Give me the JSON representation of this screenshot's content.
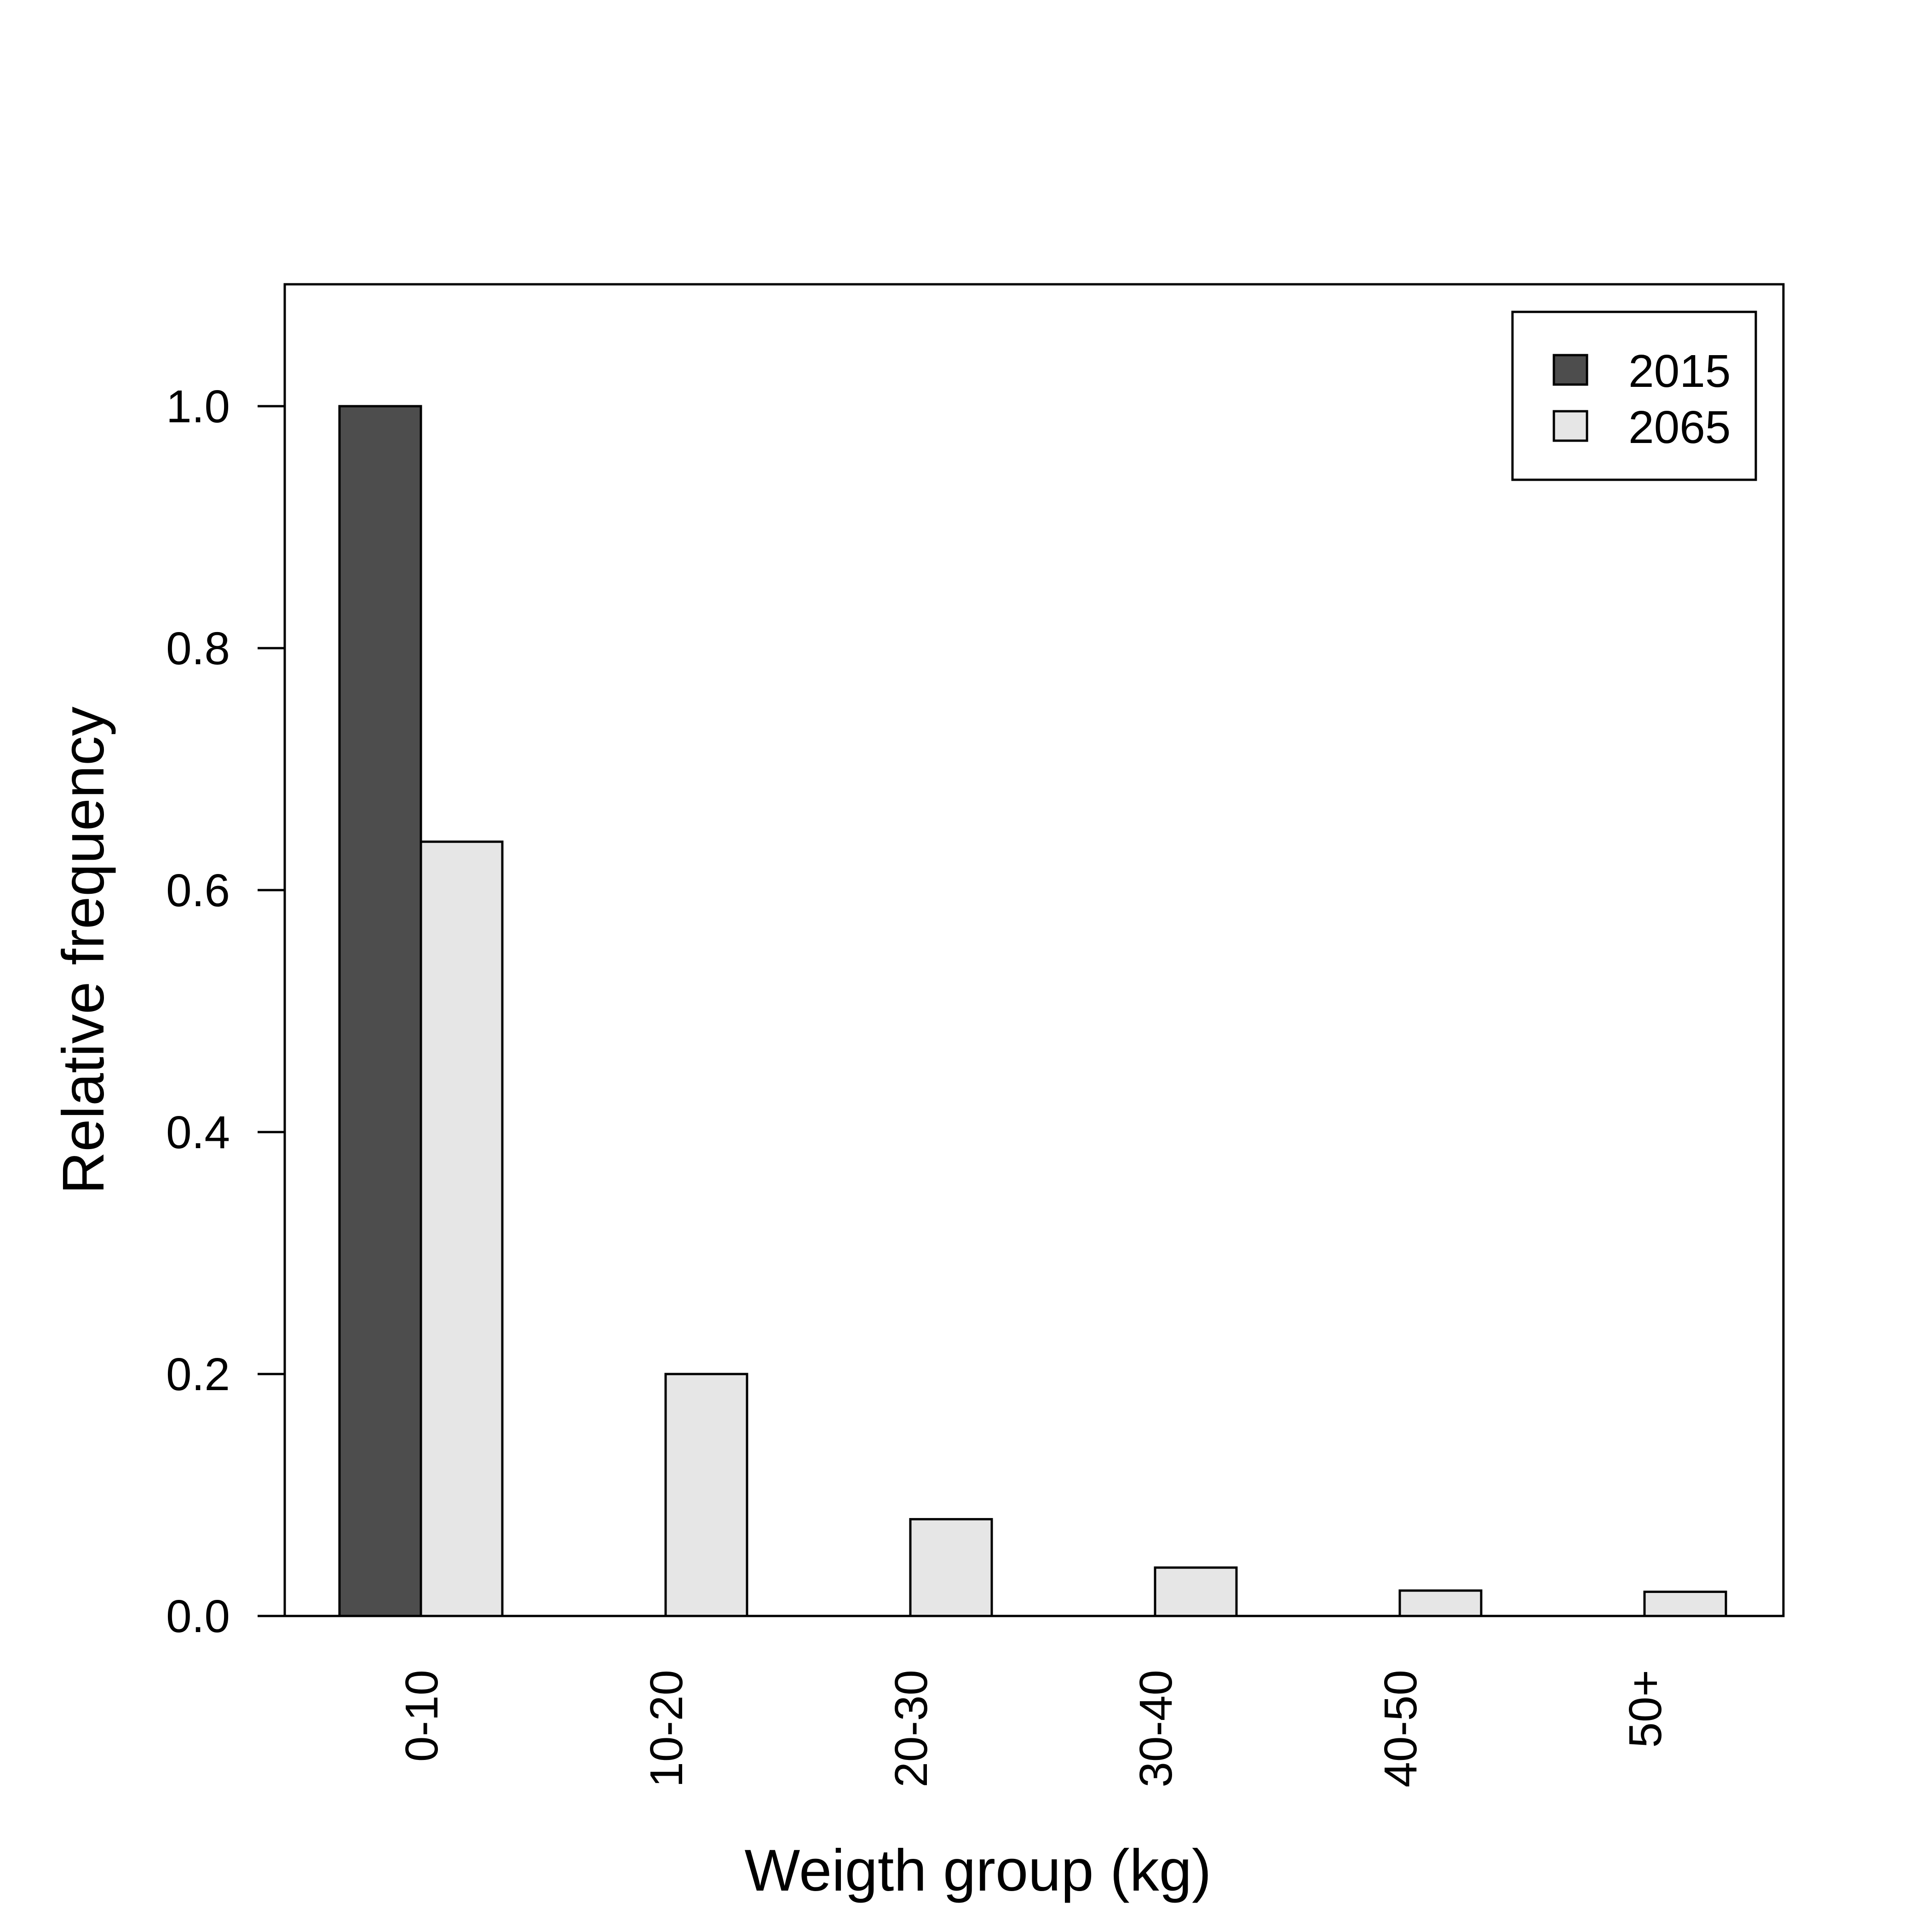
{
  "chart_data": {
    "type": "bar",
    "title": "",
    "xlabel": "Weigth group (kg)",
    "ylabel": "Relative frequency",
    "categories": [
      "0-10",
      "10-20",
      "20-30",
      "30-40",
      "40-50",
      "50+"
    ],
    "series": [
      {
        "name": "2015",
        "color": "#4d4d4d",
        "values": [
          1.0,
          0,
          0,
          0,
          0,
          0
        ]
      },
      {
        "name": "2065",
        "color": "#e6e6e6",
        "values": [
          0.64,
          0.2,
          0.08,
          0.04,
          0.021,
          0.02
        ]
      }
    ],
    "ylim": [
      0,
      1.1
    ],
    "yticks": [
      0.0,
      0.2,
      0.4,
      0.6,
      0.8,
      1.0
    ],
    "ytick_labels": [
      "0.0",
      "0.2",
      "0.4",
      "0.6",
      "0.8",
      "1.0"
    ],
    "grid": false,
    "legend": "top-right"
  }
}
